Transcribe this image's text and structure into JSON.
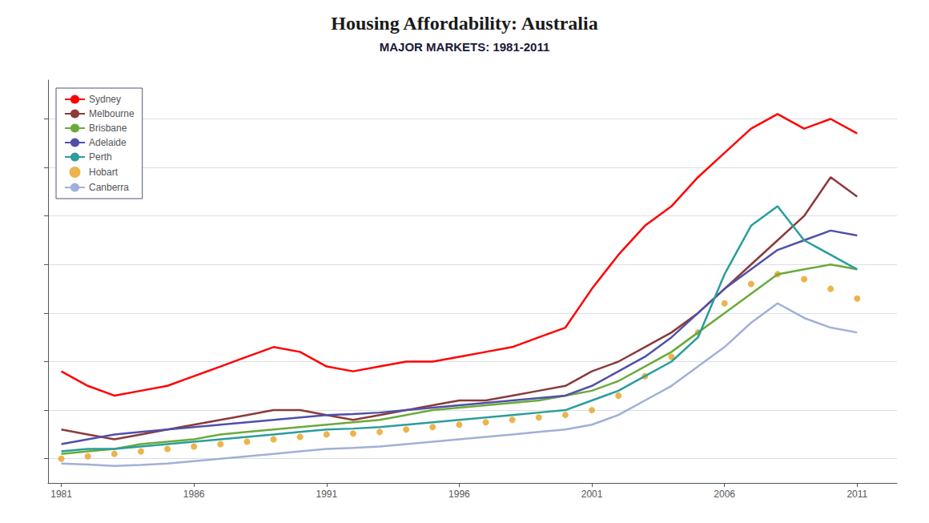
{
  "chart_data": {
    "type": "line",
    "title": "Housing Affordability: Australia",
    "subtitle": "MAJOR MARKETS: 1981-2011",
    "x": [
      1981,
      1982,
      1983,
      1984,
      1985,
      1986,
      1987,
      1988,
      1989,
      1990,
      1991,
      1992,
      1993,
      1994,
      1995,
      1996,
      1997,
      1998,
      1999,
      2000,
      2001,
      2002,
      2003,
      2004,
      2005,
      2006,
      2007,
      2008,
      2009,
      2010,
      2011
    ],
    "series": [
      {
        "name": "Sydney",
        "type": "line",
        "color": "#ff0000",
        "line_style": "solid",
        "values": [
          3.8,
          3.5,
          3.3,
          3.4,
          3.5,
          3.7,
          3.9,
          4.1,
          4.3,
          4.2,
          3.9,
          3.8,
          3.9,
          4.0,
          4.0,
          4.1,
          4.2,
          4.3,
          4.5,
          4.7,
          5.5,
          6.2,
          6.8,
          7.2,
          7.8,
          8.3,
          8.8,
          9.1,
          8.8,
          9.0,
          8.7
        ]
      },
      {
        "name": "Melbourne",
        "type": "line",
        "color": "#8B3A3A",
        "line_style": "solid",
        "values": [
          2.6,
          2.5,
          2.4,
          2.5,
          2.6,
          2.7,
          2.8,
          2.9,
          3.0,
          3.0,
          2.9,
          2.8,
          2.9,
          3.0,
          3.1,
          3.2,
          3.2,
          3.3,
          3.4,
          3.5,
          3.8,
          4.0,
          4.3,
          4.6,
          5.0,
          5.5,
          6.0,
          6.5,
          7.0,
          7.8,
          7.4
        ]
      },
      {
        "name": "Brisbane",
        "type": "line",
        "color": "#6aaa3a",
        "line_style": "solid",
        "values": [
          2.1,
          2.15,
          2.2,
          2.3,
          2.35,
          2.4,
          2.5,
          2.55,
          2.6,
          2.65,
          2.7,
          2.75,
          2.8,
          2.9,
          3.0,
          3.05,
          3.1,
          3.15,
          3.2,
          3.3,
          3.4,
          3.6,
          3.9,
          4.2,
          4.6,
          5.0,
          5.4,
          5.8,
          5.9,
          6.0,
          5.9
        ]
      },
      {
        "name": "Adelaide",
        "type": "line",
        "color": "#5050aa",
        "line_style": "solid",
        "values": [
          2.3,
          2.4,
          2.5,
          2.55,
          2.6,
          2.65,
          2.7,
          2.75,
          2.8,
          2.85,
          2.9,
          2.92,
          2.95,
          3.0,
          3.05,
          3.1,
          3.15,
          3.2,
          3.25,
          3.3,
          3.5,
          3.8,
          4.1,
          4.5,
          5.0,
          5.5,
          5.9,
          6.3,
          6.5,
          6.7,
          6.6
        ]
      },
      {
        "name": "Perth",
        "type": "line",
        "color": "#2a9d9d",
        "line_style": "solid",
        "values": [
          2.15,
          2.2,
          2.2,
          2.25,
          2.3,
          2.35,
          2.4,
          2.45,
          2.5,
          2.55,
          2.6,
          2.62,
          2.65,
          2.7,
          2.75,
          2.8,
          2.85,
          2.9,
          2.95,
          3.0,
          3.2,
          3.4,
          3.7,
          4.0,
          4.5,
          5.8,
          6.8,
          7.2,
          6.5,
          6.2,
          5.9
        ]
      },
      {
        "name": "Hobart",
        "type": "scatter",
        "color": "#e8a020",
        "marker": "circle",
        "values": [
          2.0,
          2.05,
          2.1,
          2.15,
          2.2,
          2.25,
          2.3,
          2.35,
          2.4,
          2.45,
          2.5,
          2.52,
          2.55,
          2.6,
          2.65,
          2.7,
          2.75,
          2.8,
          2.85,
          2.9,
          3.0,
          3.3,
          3.7,
          4.1,
          4.6,
          5.2,
          5.6,
          5.8,
          5.7,
          5.5,
          5.3
        ]
      },
      {
        "name": "Canberra",
        "type": "line",
        "color": "#a0b0d8",
        "line_style": "solid",
        "values": [
          1.9,
          1.88,
          1.85,
          1.87,
          1.9,
          1.95,
          2.0,
          2.05,
          2.1,
          2.15,
          2.2,
          2.22,
          2.25,
          2.3,
          2.35,
          2.4,
          2.45,
          2.5,
          2.55,
          2.6,
          2.7,
          2.9,
          3.2,
          3.5,
          3.9,
          4.3,
          4.8,
          5.2,
          4.9,
          4.7,
          4.6
        ]
      }
    ],
    "xlim": [
      1980.5,
      2012.5
    ],
    "xticks": [
      1981,
      1986,
      1991,
      1996,
      2001,
      2006,
      2011
    ],
    "ylim": [
      1.5,
      9.8
    ],
    "yticks": [
      2.0,
      3.0,
      4.0,
      5.0,
      6.0,
      7.0,
      8.0,
      9.0
    ],
    "grid": true,
    "legend": "upper left",
    "tick_labels": "x"
  }
}
